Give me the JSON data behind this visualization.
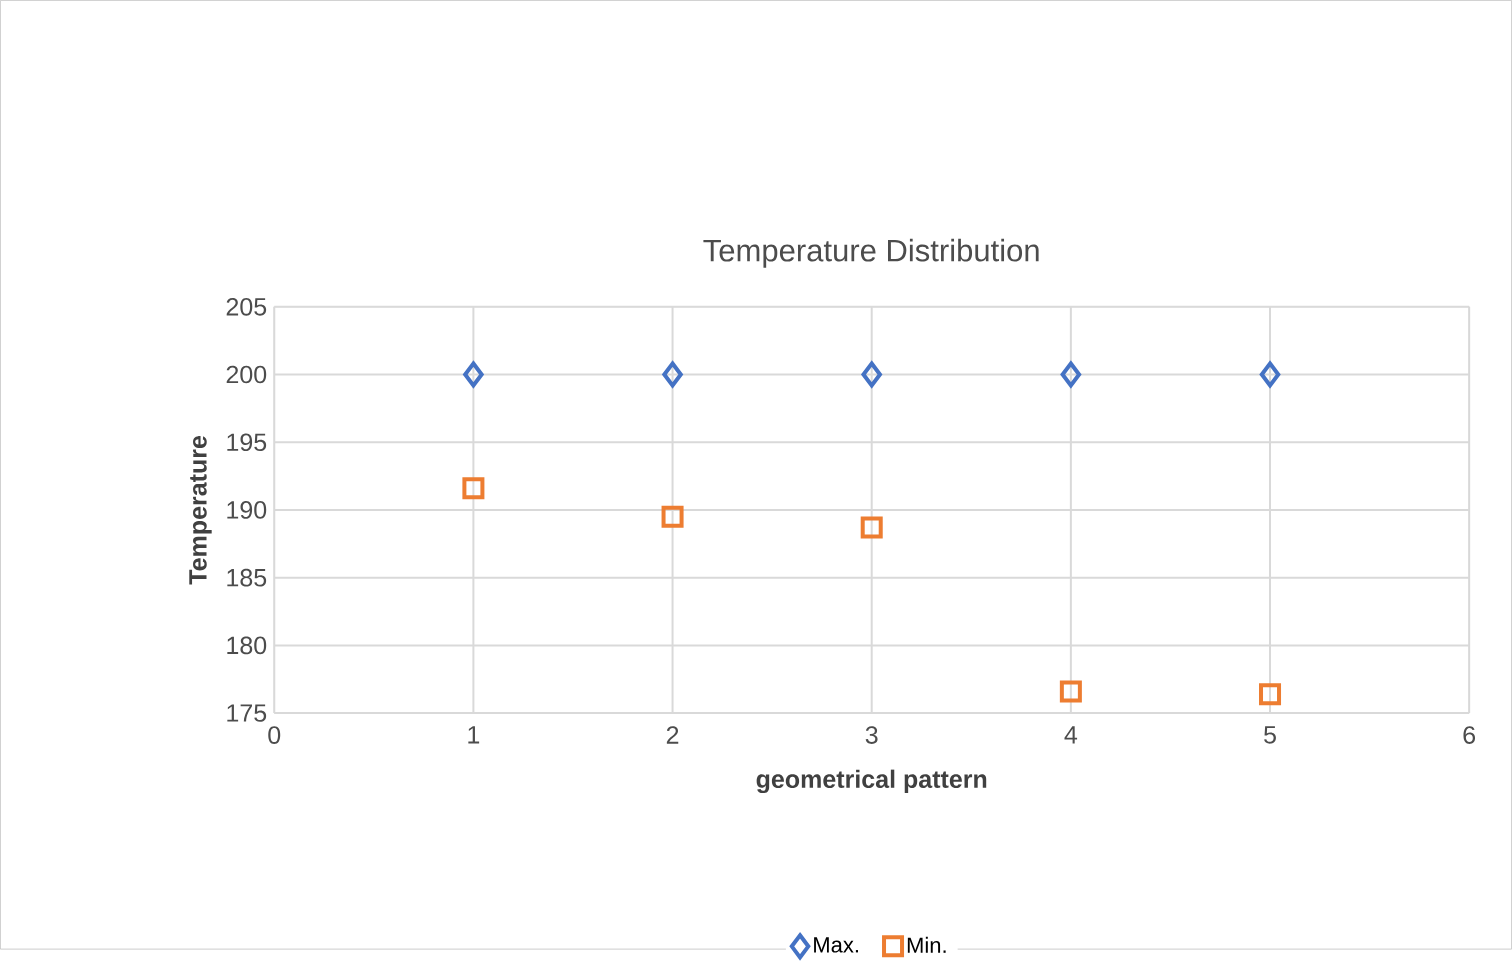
{
  "chart_data": {
    "type": "scatter",
    "title": "Temperature Distribution",
    "xlabel": "geometrical pattern",
    "ylabel": "Temperature",
    "xlim": [
      0,
      6
    ],
    "xticks": [
      0,
      1,
      2,
      3,
      4,
      5,
      6
    ],
    "ylim": [
      175,
      205
    ],
    "yticks": [
      175,
      180,
      185,
      190,
      195,
      200,
      205
    ],
    "grid": true,
    "legend": "bottom",
    "series": [
      {
        "name": "Max.",
        "color": "#4472c4",
        "marker": "diamond",
        "x": [
          1,
          2,
          3,
          4,
          5
        ],
        "values": [
          200,
          200,
          200,
          200,
          200
        ]
      },
      {
        "name": "Min.",
        "color": "#ed7d31",
        "marker": "square",
        "x": [
          1,
          2,
          3,
          4,
          5
        ],
        "values": [
          191.6,
          189.5,
          188.7,
          176.6,
          176.4
        ]
      }
    ]
  }
}
